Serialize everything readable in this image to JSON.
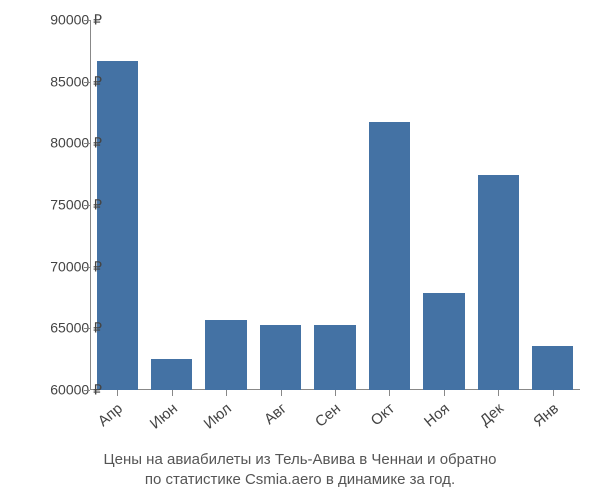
{
  "chart": {
    "type": "bar",
    "background_color": "#ffffff",
    "bar_color": "#4472a4",
    "axis_color": "#888888",
    "text_color": "#444444",
    "caption_color": "#555555",
    "label_fontsize": 15,
    "tick_fontsize": 14,
    "caption_fontsize": 15,
    "currency_suffix": " ₽",
    "ylim_min": 60000,
    "ylim_max": 90000,
    "ytick_step": 5000,
    "yticks": [
      {
        "value": 60000,
        "label": "60000 ₽"
      },
      {
        "value": 65000,
        "label": "65000 ₽"
      },
      {
        "value": 70000,
        "label": "70000 ₽"
      },
      {
        "value": 75000,
        "label": "75000 ₽"
      },
      {
        "value": 80000,
        "label": "80000 ₽"
      },
      {
        "value": 85000,
        "label": "85000 ₽"
      },
      {
        "value": 90000,
        "label": "90000 ₽"
      }
    ],
    "xlabel_rotation_deg": -40,
    "bar_width_ratio": 0.76,
    "categories": [
      "Апр",
      "Июн",
      "Июл",
      "Авг",
      "Сен",
      "Окт",
      "Ноя",
      "Дек",
      "Янв"
    ],
    "values": [
      86700,
      62500,
      65700,
      65300,
      65300,
      81700,
      67900,
      77400,
      63600
    ],
    "caption_line1": "Цены на авиабилеты из Тель-Авива в Ченнаи и обратно",
    "caption_line2": "по статистике Csmia.aero в динамике за год."
  }
}
